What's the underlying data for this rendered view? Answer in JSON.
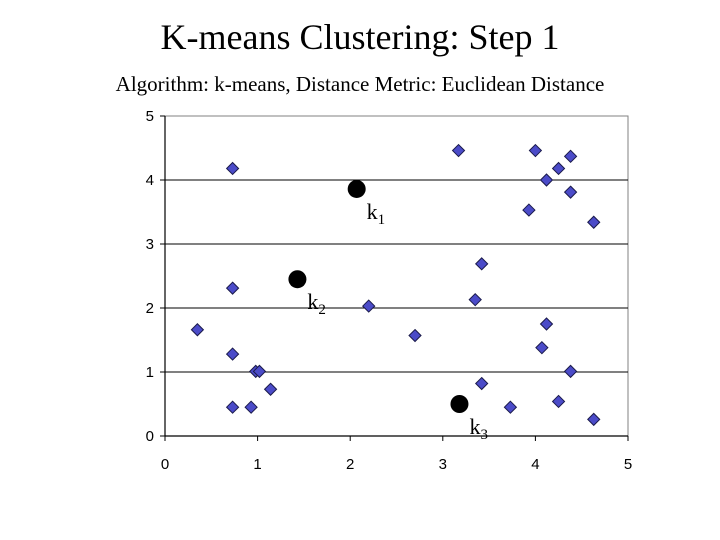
{
  "title": "K-means Clustering: Step 1",
  "subtitle": "Algorithm: k-means, Distance Metric: Euclidean Distance",
  "colors": {
    "point_fill": "#4B4BC8",
    "point_stroke": "#1a1a4a",
    "centroid": "#000000",
    "gridline": "#000000",
    "plot_border": "#808080"
  },
  "chart_data": {
    "type": "scatter",
    "title": "",
    "xlabel": "",
    "ylabel": "",
    "xlim": [
      0,
      5
    ],
    "ylim": [
      0,
      5
    ],
    "x_ticks": [
      "0",
      "1",
      "2",
      "3",
      "4",
      "5"
    ],
    "y_ticks": [
      "0",
      "1",
      "2",
      "3",
      "4",
      "5"
    ],
    "grid": "horizontal",
    "series": [
      {
        "marker": "diamond",
        "points": [
          [
            0.73,
            4.18
          ],
          [
            3.17,
            4.46
          ],
          [
            4.0,
            4.46
          ],
          [
            4.38,
            4.37
          ],
          [
            4.25,
            4.18
          ],
          [
            4.12,
            4.0
          ],
          [
            4.38,
            3.81
          ],
          [
            3.93,
            3.53
          ],
          [
            4.63,
            3.34
          ],
          [
            3.42,
            2.69
          ],
          [
            0.73,
            2.31
          ],
          [
            3.35,
            2.13
          ],
          [
            2.2,
            2.03
          ],
          [
            4.12,
            1.75
          ],
          [
            0.35,
            1.66
          ],
          [
            2.7,
            1.57
          ],
          [
            4.07,
            1.38
          ],
          [
            0.73,
            1.28
          ],
          [
            0.98,
            1.01
          ],
          [
            1.02,
            1.01
          ],
          [
            4.38,
            1.01
          ],
          [
            3.42,
            0.82
          ],
          [
            1.14,
            0.73
          ],
          [
            4.25,
            0.54
          ],
          [
            0.73,
            0.45
          ],
          [
            0.93,
            0.45
          ],
          [
            3.73,
            0.45
          ],
          [
            4.63,
            0.26
          ]
        ]
      },
      {
        "marker": "circle",
        "role": "centroids",
        "points": [
          {
            "x": 2.07,
            "y": 3.86,
            "label": "k",
            "sub": "1"
          },
          {
            "x": 1.43,
            "y": 2.45,
            "label": "k",
            "sub": "2"
          },
          {
            "x": 3.18,
            "y": 0.5,
            "label": "k",
            "sub": "3"
          }
        ]
      }
    ]
  }
}
